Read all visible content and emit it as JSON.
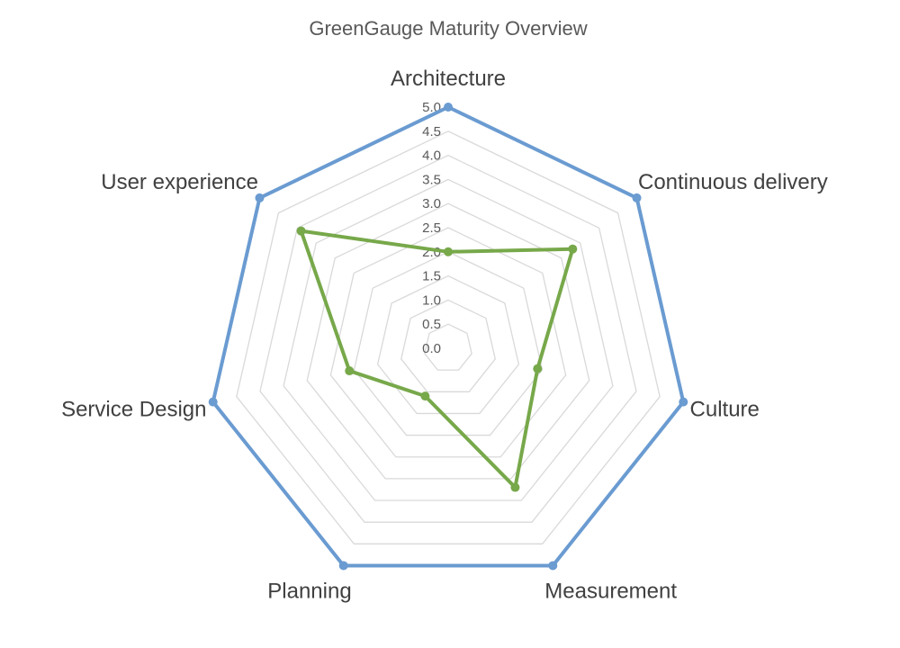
{
  "chart_data": {
    "type": "radar",
    "title": "GreenGauge Maturity Overview",
    "categories": [
      "Architecture",
      "Continuous delivery",
      "Culture",
      "Measurement",
      "Planning",
      "Service Design",
      "User experience"
    ],
    "rlim": [
      0,
      5
    ],
    "ticks": [
      "0.0",
      "0.5",
      "1.0",
      "1.5",
      "2.0",
      "2.5",
      "3.0",
      "3.5",
      "4.0",
      "4.5",
      "5.0"
    ],
    "grid": true,
    "legend": "none",
    "series": [
      {
        "color": "#6a9bd1",
        "values": [
          5,
          5,
          5,
          5,
          5,
          5,
          5
        ]
      },
      {
        "color": "#77a84a",
        "values": [
          2,
          3.3,
          1.9,
          3.2,
          1.1,
          2.1,
          3.9
        ]
      }
    ]
  }
}
